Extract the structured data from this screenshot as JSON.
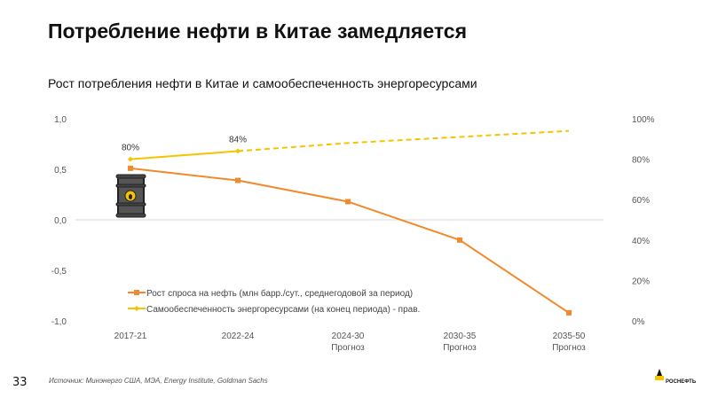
{
  "header": {
    "title": "Потребление нефти в Китае замедляется",
    "subtitle": "Рост потребления нефти в Китае и самообеспеченность энергоресурсами"
  },
  "footer": {
    "page_number": "33",
    "source": "Источник: Минэнерго США, МЭА, Energy Institute, Goldman Sachs",
    "logo_text": "РОСНЕФТЬ"
  },
  "chart_data": {
    "type": "line",
    "categories": [
      "2017-21",
      "2022-24",
      "2024-30",
      "2030-35",
      "2035-50"
    ],
    "category_sublabels": [
      "",
      "",
      "Прогноз",
      "Прогноз",
      "Прогноз"
    ],
    "y_left": {
      "ticks": [
        "1,0",
        "0,5",
        "0,0",
        "-0,5",
        "-1,0"
      ],
      "range": [
        -1,
        1
      ]
    },
    "y_right": {
      "ticks": [
        "100%",
        "80%",
        "60%",
        "40%",
        "20%",
        "0%"
      ],
      "range": [
        0,
        100
      ]
    },
    "series": [
      {
        "name": "Рост спроса на нефть (млн барр./сут., среднегодовой за период)",
        "axis": "left",
        "color": "#F08A2C",
        "marker": "square",
        "values": [
          0.51,
          0.39,
          0.18,
          -0.2,
          -0.92
        ]
      },
      {
        "name": "Самообеспеченность энергоресурсами (на конец периода) - прав.",
        "axis": "right",
        "color": "#F5C400",
        "marker": "diamond",
        "values": [
          80,
          84,
          88,
          91,
          94
        ],
        "dashed_from_index": 1,
        "data_labels": [
          "80%",
          "84%"
        ]
      }
    ],
    "legend": "bottom-left inside",
    "grid": false
  }
}
